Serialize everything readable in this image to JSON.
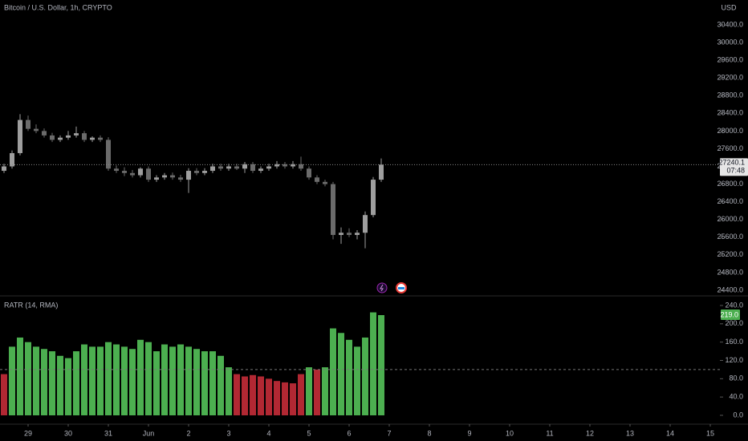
{
  "header": {
    "title": "Bitcoin / U.S. Dollar, 1h, CRYPTO",
    "currency": "USD"
  },
  "chart_data": [
    {
      "type": "candlestick",
      "x": [
        28.4,
        28.6,
        28.8,
        29.0,
        29.2,
        29.4,
        29.6,
        29.8,
        30.0,
        30.2,
        30.4,
        30.6,
        30.8,
        31.0,
        31.2,
        31.4,
        31.6,
        31.8,
        32.0,
        32.2,
        32.4,
        32.6,
        32.8,
        33.0,
        33.2,
        33.4,
        33.6,
        33.8,
        34.0,
        34.2,
        34.4,
        34.6,
        34.8,
        35.0,
        35.2,
        35.4,
        35.6,
        35.8,
        36.0,
        36.2,
        36.4,
        36.6,
        36.8,
        37.0,
        37.2,
        37.4,
        37.6,
        37.8
      ],
      "open": [
        27100,
        27200,
        27500,
        28250,
        28050,
        28000,
        27900,
        27800,
        27850,
        27900,
        27950,
        27800,
        27850,
        27800,
        27150,
        27100,
        27050,
        27000,
        27150,
        26900,
        26950,
        27000,
        26950,
        26900,
        27100,
        27050,
        27100,
        27200,
        27150,
        27200,
        27150,
        27250,
        27100,
        27150,
        27200,
        27250,
        27200,
        27250,
        27150,
        26950,
        26850,
        26800,
        25650,
        25700,
        25650,
        25700,
        26100,
        26900
      ],
      "high": [
        27260,
        27560,
        28380,
        28350,
        28150,
        28060,
        27960,
        27900,
        28000,
        28100,
        28000,
        27880,
        27900,
        27860,
        27220,
        27180,
        27120,
        27180,
        27200,
        27000,
        27050,
        27060,
        27010,
        27160,
        27160,
        27160,
        27260,
        27260,
        27260,
        27260,
        27300,
        27300,
        27200,
        27260,
        27320,
        27300,
        27320,
        27420,
        27200,
        27000,
        26900,
        26850,
        25820,
        25800,
        25760,
        26180,
        26960,
        27380
      ],
      "low": [
        27050,
        27150,
        27450,
        28000,
        27950,
        27850,
        27750,
        27750,
        27800,
        27850,
        27750,
        27750,
        27750,
        27100,
        27050,
        26980,
        26950,
        26950,
        26850,
        26850,
        26900,
        26900,
        26850,
        26600,
        27000,
        27000,
        27050,
        27100,
        27100,
        27120,
        27050,
        27050,
        27050,
        27100,
        27150,
        27150,
        27150,
        27100,
        26900,
        26800,
        26750,
        25550,
        25450,
        25600,
        25550,
        25350,
        26050,
        26850
      ],
      "close": [
        27200,
        27500,
        28250,
        28050,
        28000,
        27900,
        27800,
        27850,
        27900,
        27950,
        27800,
        27850,
        27800,
        27150,
        27100,
        27050,
        27000,
        27150,
        26900,
        26950,
        27000,
        26950,
        26900,
        27100,
        27050,
        27100,
        27200,
        27150,
        27200,
        27150,
        27250,
        27100,
        27150,
        27200,
        27250,
        27200,
        27250,
        27150,
        26950,
        26850,
        26800,
        25650,
        25700,
        25650,
        25700,
        26100,
        26900,
        27240.1
      ],
      "up_color": "#9e9e9e",
      "down_color": "#6b6b6b",
      "xlim": [
        28.3,
        46.2
      ],
      "ylim": [
        24291,
        30962
      ],
      "yticks": [
        {
          "value": 24400,
          "label": "24400.0"
        },
        {
          "value": 24800,
          "label": "24800.0"
        },
        {
          "value": 25200,
          "label": "25200.0"
        },
        {
          "value": 25600,
          "label": "25600.0"
        },
        {
          "value": 26000,
          "label": "26000.0"
        },
        {
          "value": 26400,
          "label": "26400.0"
        },
        {
          "value": 26800,
          "label": "26800.0"
        },
        {
          "value": 27200,
          "label": "27200.0"
        },
        {
          "value": 27600,
          "label": "27600.0"
        },
        {
          "value": 28000,
          "label": "28000.0"
        },
        {
          "value": 28400,
          "label": "28400.0"
        },
        {
          "value": 28800,
          "label": "28800.0"
        },
        {
          "value": 29200,
          "label": "29200.0"
        },
        {
          "value": 29600,
          "label": "29600.0"
        },
        {
          "value": 30000,
          "label": "30000.0"
        },
        {
          "value": 30400,
          "label": "30400.0"
        }
      ],
      "last_price": 27240.1,
      "countdown": "07:48"
    },
    {
      "type": "bar",
      "title": "RATR (14, RMA)",
      "x": [
        28.4,
        28.6,
        28.8,
        29.0,
        29.2,
        29.4,
        29.6,
        29.8,
        30.0,
        30.2,
        30.4,
        30.6,
        30.8,
        31.0,
        31.2,
        31.4,
        31.6,
        31.8,
        32.0,
        32.2,
        32.4,
        32.6,
        32.8,
        33.0,
        33.2,
        33.4,
        33.6,
        33.8,
        34.0,
        34.2,
        34.4,
        34.6,
        34.8,
        35.0,
        35.2,
        35.4,
        35.6,
        35.8,
        36.0,
        36.2,
        36.4,
        36.6,
        36.8,
        37.0,
        37.2,
        37.4,
        37.6,
        37.8
      ],
      "values": [
        90,
        150,
        170,
        160,
        150,
        145,
        140,
        130,
        125,
        140,
        155,
        150,
        150,
        160,
        155,
        150,
        145,
        165,
        160,
        140,
        155,
        150,
        155,
        150,
        145,
        140,
        140,
        130,
        105,
        90,
        85,
        88,
        85,
        80,
        75,
        72,
        70,
        90,
        105,
        100,
        105,
        190,
        180,
        165,
        150,
        170,
        225,
        219
      ],
      "level": 100,
      "above_color": "#4caf50",
      "below_color": "#b22833",
      "last_label": "219.0",
      "xlim": [
        28.3,
        46.2
      ],
      "ylim": [
        -15.8,
        259.3
      ],
      "yticks": [
        {
          "value": 0,
          "label": "0.0"
        },
        {
          "value": 40,
          "label": "40.0"
        },
        {
          "value": 80,
          "label": "80.0"
        },
        {
          "value": 120,
          "label": "120.0"
        },
        {
          "value": 160,
          "label": "160.0"
        },
        {
          "value": 200,
          "label": "200.0"
        },
        {
          "value": 240,
          "label": "240.0"
        }
      ],
      "xticks": [
        {
          "value": 29,
          "label": "29"
        },
        {
          "value": 30,
          "label": "30"
        },
        {
          "value": 31,
          "label": "31"
        },
        {
          "value": 32,
          "label": "Jun"
        },
        {
          "value": 33,
          "label": "2"
        },
        {
          "value": 34,
          "label": "3"
        },
        {
          "value": 35,
          "label": "4"
        },
        {
          "value": 36,
          "label": "5"
        },
        {
          "value": 37,
          "label": "6"
        },
        {
          "value": 38,
          "label": "7"
        },
        {
          "value": 39,
          "label": "8"
        },
        {
          "value": 40,
          "label": "9"
        },
        {
          "value": 41,
          "label": "10"
        },
        {
          "value": 42,
          "label": "11"
        },
        {
          "value": 43,
          "label": "12"
        },
        {
          "value": 44,
          "label": "13"
        },
        {
          "value": 45,
          "label": "14"
        },
        {
          "value": 46,
          "label": "15"
        }
      ]
    }
  ]
}
